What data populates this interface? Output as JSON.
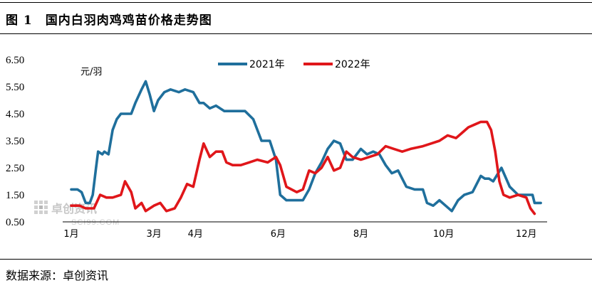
{
  "figure": {
    "label": "图 1",
    "title": "国内白羽肉鸡鸡苗价格走势图",
    "source": "数据来源：卓创资讯"
  },
  "watermark": {
    "brand": "卓创资讯",
    "site": "SCI99.COM"
  },
  "chart_data": {
    "type": "line",
    "unit_label": "元/羽",
    "x_tick_labels": [
      "1月",
      "3月",
      "4月",
      "6月",
      "8月",
      "10月",
      "12月"
    ],
    "x_tick_positions": [
      1,
      3,
      4,
      6,
      8,
      10,
      12
    ],
    "x_range": [
      1,
      12.4
    ],
    "y_tick_labels": [
      "0.50",
      "1.50",
      "2.50",
      "3.50",
      "4.50",
      "5.50",
      "6.50"
    ],
    "y_ticks": [
      0.5,
      1.5,
      2.5,
      3.5,
      4.5,
      5.5,
      6.5
    ],
    "ylim": [
      0.5,
      6.5
    ],
    "legend_position": "top-center",
    "series": [
      {
        "name": "2021年",
        "color": "#1f6f9c",
        "points": [
          [
            1.0,
            1.7
          ],
          [
            1.15,
            1.7
          ],
          [
            1.25,
            1.6
          ],
          [
            1.35,
            1.2
          ],
          [
            1.45,
            1.2
          ],
          [
            1.52,
            1.5
          ],
          [
            1.6,
            2.5
          ],
          [
            1.65,
            3.1
          ],
          [
            1.75,
            3.0
          ],
          [
            1.8,
            3.1
          ],
          [
            1.9,
            3.0
          ],
          [
            2.0,
            3.9
          ],
          [
            2.1,
            4.3
          ],
          [
            2.2,
            4.5
          ],
          [
            2.45,
            4.5
          ],
          [
            2.55,
            4.9
          ],
          [
            2.7,
            5.4
          ],
          [
            2.8,
            5.7
          ],
          [
            2.9,
            5.2
          ],
          [
            3.0,
            4.6
          ],
          [
            3.1,
            5.0
          ],
          [
            3.25,
            5.3
          ],
          [
            3.4,
            5.4
          ],
          [
            3.6,
            5.3
          ],
          [
            3.75,
            5.4
          ],
          [
            3.95,
            5.3
          ],
          [
            4.1,
            4.9
          ],
          [
            4.2,
            4.9
          ],
          [
            4.35,
            4.7
          ],
          [
            4.5,
            4.8
          ],
          [
            4.7,
            4.6
          ],
          [
            4.9,
            4.6
          ],
          [
            5.2,
            4.6
          ],
          [
            5.4,
            4.3
          ],
          [
            5.6,
            3.5
          ],
          [
            5.8,
            3.5
          ],
          [
            5.95,
            2.8
          ],
          [
            6.05,
            1.5
          ],
          [
            6.2,
            1.3
          ],
          [
            6.4,
            1.3
          ],
          [
            6.6,
            1.3
          ],
          [
            6.75,
            1.7
          ],
          [
            6.9,
            2.3
          ],
          [
            7.05,
            2.7
          ],
          [
            7.2,
            3.2
          ],
          [
            7.35,
            3.5
          ],
          [
            7.5,
            3.4
          ],
          [
            7.65,
            2.8
          ],
          [
            7.8,
            2.8
          ],
          [
            8.0,
            3.2
          ],
          [
            8.15,
            3.0
          ],
          [
            8.3,
            3.1
          ],
          [
            8.45,
            3.0
          ],
          [
            8.6,
            2.6
          ],
          [
            8.75,
            2.3
          ],
          [
            8.9,
            2.4
          ],
          [
            9.1,
            1.8
          ],
          [
            9.3,
            1.7
          ],
          [
            9.5,
            1.7
          ],
          [
            9.6,
            1.2
          ],
          [
            9.75,
            1.1
          ],
          [
            9.9,
            1.3
          ],
          [
            10.05,
            1.1
          ],
          [
            10.2,
            0.9
          ],
          [
            10.35,
            1.3
          ],
          [
            10.5,
            1.5
          ],
          [
            10.7,
            1.6
          ],
          [
            10.9,
            2.2
          ],
          [
            11.0,
            2.1
          ],
          [
            11.1,
            2.1
          ],
          [
            11.2,
            2.0
          ],
          [
            11.4,
            2.5
          ],
          [
            11.6,
            1.8
          ],
          [
            11.8,
            1.5
          ],
          [
            12.0,
            1.5
          ],
          [
            12.15,
            1.5
          ],
          [
            12.2,
            1.2
          ],
          [
            12.35,
            1.2
          ]
        ]
      },
      {
        "name": "2022年",
        "color": "#e0161a",
        "points": [
          [
            1.0,
            1.1
          ],
          [
            1.2,
            1.1
          ],
          [
            1.35,
            1.0
          ],
          [
            1.55,
            1.0
          ],
          [
            1.7,
            1.5
          ],
          [
            1.85,
            1.4
          ],
          [
            2.0,
            1.4
          ],
          [
            2.2,
            1.5
          ],
          [
            2.3,
            2.0
          ],
          [
            2.45,
            1.6
          ],
          [
            2.55,
            1.0
          ],
          [
            2.7,
            1.2
          ],
          [
            2.8,
            0.9
          ],
          [
            3.0,
            1.1
          ],
          [
            3.15,
            1.2
          ],
          [
            3.3,
            0.9
          ],
          [
            3.5,
            1.0
          ],
          [
            3.65,
            1.4
          ],
          [
            3.8,
            1.9
          ],
          [
            3.95,
            1.8
          ],
          [
            4.1,
            2.8
          ],
          [
            4.2,
            3.4
          ],
          [
            4.35,
            2.9
          ],
          [
            4.5,
            3.1
          ],
          [
            4.65,
            3.1
          ],
          [
            4.75,
            2.7
          ],
          [
            4.9,
            2.6
          ],
          [
            5.1,
            2.6
          ],
          [
            5.3,
            2.7
          ],
          [
            5.5,
            2.8
          ],
          [
            5.75,
            2.7
          ],
          [
            5.95,
            2.9
          ],
          [
            6.05,
            2.6
          ],
          [
            6.2,
            1.8
          ],
          [
            6.45,
            1.6
          ],
          [
            6.6,
            1.7
          ],
          [
            6.75,
            2.4
          ],
          [
            6.9,
            2.3
          ],
          [
            7.05,
            2.5
          ],
          [
            7.2,
            2.9
          ],
          [
            7.35,
            2.4
          ],
          [
            7.5,
            2.5
          ],
          [
            7.65,
            3.1
          ],
          [
            7.8,
            2.9
          ],
          [
            8.0,
            2.8
          ],
          [
            8.2,
            2.9
          ],
          [
            8.4,
            3.0
          ],
          [
            8.6,
            3.3
          ],
          [
            8.8,
            3.2
          ],
          [
            9.0,
            3.1
          ],
          [
            9.2,
            3.2
          ],
          [
            9.5,
            3.3
          ],
          [
            9.7,
            3.4
          ],
          [
            9.9,
            3.5
          ],
          [
            10.1,
            3.7
          ],
          [
            10.3,
            3.6
          ],
          [
            10.45,
            3.8
          ],
          [
            10.6,
            4.0
          ],
          [
            10.75,
            4.1
          ],
          [
            10.9,
            4.2
          ],
          [
            11.05,
            4.2
          ],
          [
            11.15,
            3.9
          ],
          [
            11.25,
            3.1
          ],
          [
            11.35,
            2.0
          ],
          [
            11.45,
            1.5
          ],
          [
            11.6,
            1.4
          ],
          [
            11.8,
            1.5
          ],
          [
            12.0,
            1.4
          ],
          [
            12.1,
            1.0
          ],
          [
            12.2,
            0.8
          ]
        ]
      }
    ]
  }
}
